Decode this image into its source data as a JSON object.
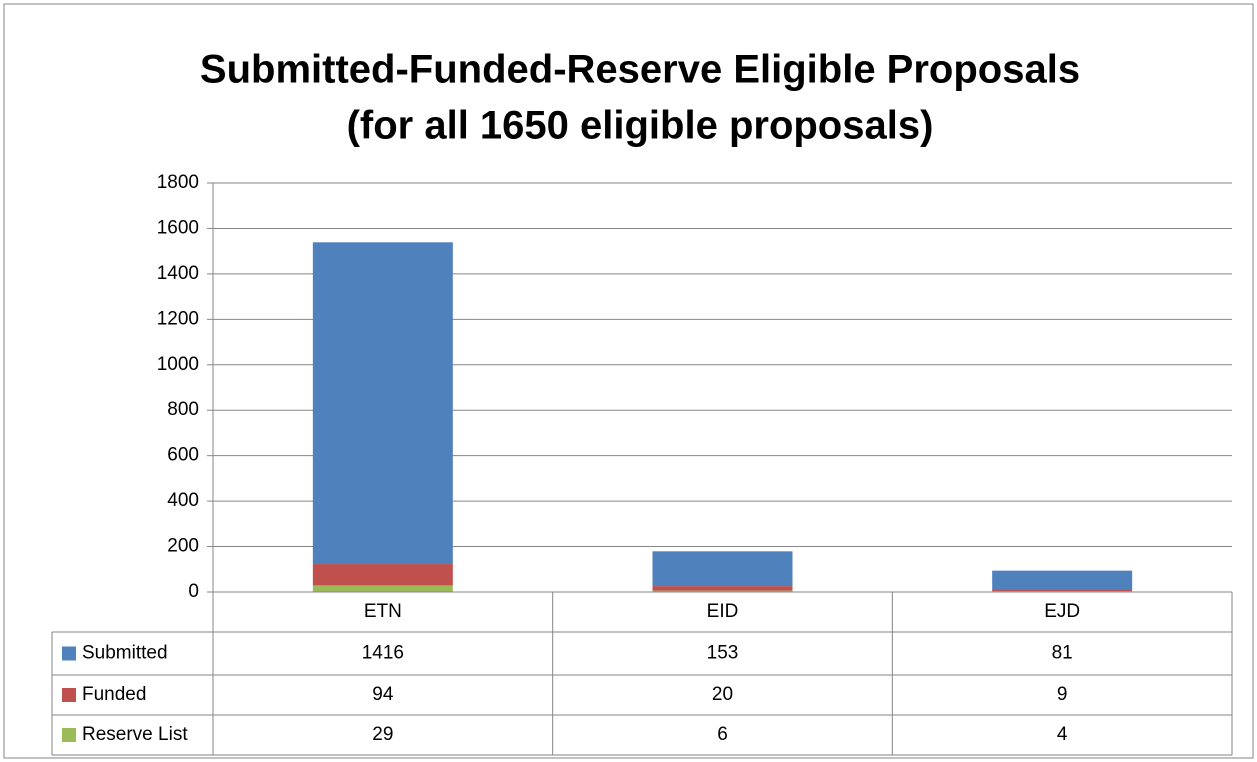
{
  "chart_data": {
    "type": "bar",
    "stacked": true,
    "title": "Submitted-Funded-Reserve Eligible Proposals",
    "subtitle": "(for all 1650 eligible proposals)",
    "categories": [
      "ETN",
      "EID",
      "EJD"
    ],
    "series": [
      {
        "name": "Submitted",
        "color": "#4f81bd",
        "values": [
          1416,
          153,
          81
        ]
      },
      {
        "name": "Funded",
        "color": "#c0504d",
        "values": [
          94,
          20,
          9
        ]
      },
      {
        "name": "Reserve List",
        "color": "#9bbb59",
        "values": [
          29,
          6,
          4
        ]
      }
    ],
    "ylim": [
      0,
      1800
    ],
    "yticks": [
      0,
      200,
      400,
      600,
      800,
      1000,
      1200,
      1400,
      1600,
      1800
    ],
    "grid": true
  }
}
